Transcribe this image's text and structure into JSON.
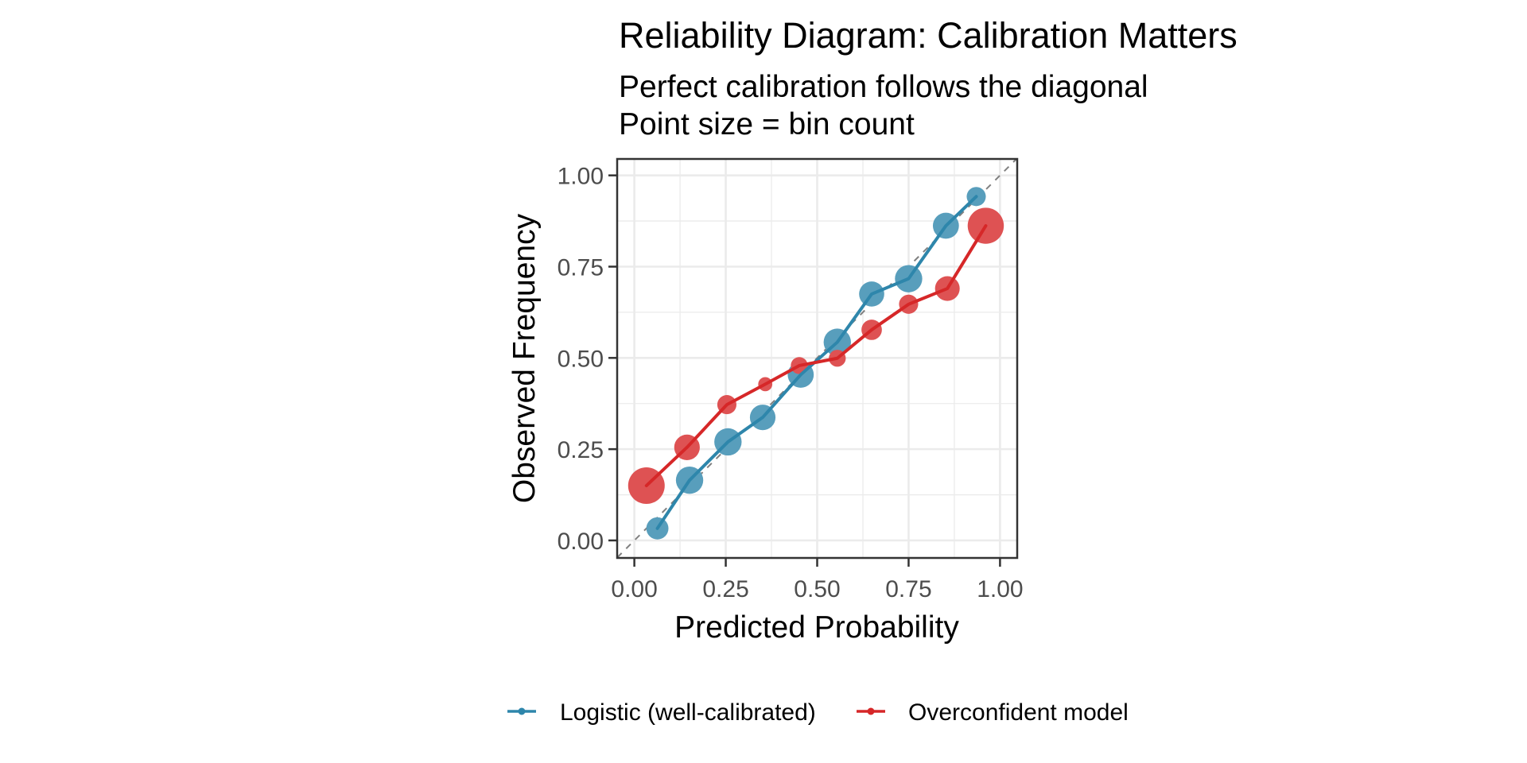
{
  "chart_data": {
    "type": "line",
    "title": "Reliability Diagram: Calibration Matters",
    "subtitle_lines": [
      "Perfect calibration follows the diagonal",
      "Point size = bin count"
    ],
    "xlabel": "Predicted Probability",
    "ylabel": "Observed Frequency",
    "xlim": [
      -0.047,
      1.047
    ],
    "ylim": [
      -0.048,
      1.045
    ],
    "x_ticks": [
      0,
      0.25,
      0.5,
      0.75,
      1
    ],
    "x_tick_labels": [
      "0.00",
      "0.25",
      "0.50",
      "0.75",
      "1.00"
    ],
    "y_ticks": [
      0,
      0.25,
      0.5,
      0.75,
      1
    ],
    "y_tick_labels": [
      "0.00",
      "0.25",
      "0.50",
      "0.75",
      "1.00"
    ],
    "grid": true,
    "reference_line": {
      "type": "diagonal",
      "style": "dashed",
      "color": "#808080"
    },
    "legend_position": "bottom",
    "series": [
      {
        "name": "Logistic (well-calibrated)",
        "color": "#2E86AB",
        "x": [
          0.063,
          0.151,
          0.256,
          0.351,
          0.455,
          0.555,
          0.649,
          0.75,
          0.852,
          0.935
        ],
        "y": [
          0.033,
          0.165,
          0.27,
          0.337,
          0.454,
          0.543,
          0.675,
          0.717,
          0.862,
          0.942
        ],
        "bin_count": [
          145,
          255,
          255,
          215,
          225,
          255,
          205,
          255,
          225,
          95
        ]
      },
      {
        "name": "Overconfident model",
        "color": "#D62728",
        "x": [
          0.033,
          0.144,
          0.253,
          0.358,
          0.451,
          0.555,
          0.649,
          0.75,
          0.856,
          0.961
        ],
        "y": [
          0.15,
          0.255,
          0.372,
          0.428,
          0.479,
          0.499,
          0.577,
          0.647,
          0.69,
          0.862
        ],
        "bin_count": [
          530,
          215,
          95,
          35,
          65,
          65,
          115,
          95,
          195,
          515
        ]
      }
    ]
  }
}
